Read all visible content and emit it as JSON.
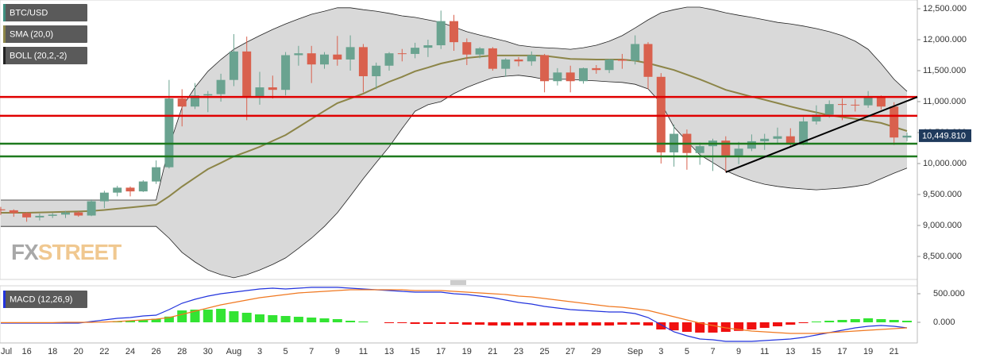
{
  "chart_data": [
    {
      "type": "candlestick",
      "name": "BTC/USD",
      "legend_color": "#3f8f7f",
      "up_color": "#6aa390",
      "down_color": "#d9614e",
      "open": [
        9260,
        9245,
        9200,
        9130,
        9155,
        9175,
        9210,
        9160,
        9390,
        9530,
        9610,
        9550,
        9710,
        9940,
        11050,
        10920,
        11100,
        11120,
        11350,
        11810,
        11070,
        11230,
        11190,
        11750,
        11780,
        11600,
        11760,
        11680,
        11880,
        11410,
        11580,
        11780,
        11770,
        11870,
        11910,
        12300,
        11960,
        11760,
        11860,
        11530,
        11680,
        11650,
        11750,
        11330,
        11470,
        11330,
        11540,
        11510,
        11680,
        11660,
        11930,
        11400,
        10180,
        10480,
        10170,
        10280,
        10370,
        10130,
        10240,
        10360,
        10400,
        10440,
        10330,
        10680,
        10790,
        10960,
        10950,
        10940,
        11090,
        10920,
        10420
      ],
      "high": [
        9300,
        9260,
        9215,
        9190,
        9200,
        9235,
        9230,
        9420,
        9560,
        9640,
        9630,
        9730,
        10050,
        11350,
        11200,
        11300,
        11170,
        11450,
        12090,
        12050,
        11480,
        11420,
        11800,
        11900,
        11900,
        11800,
        12060,
        12070,
        11930,
        11630,
        11800,
        11850,
        11950,
        12000,
        12470,
        12400,
        12020,
        11880,
        11880,
        11700,
        11720,
        11810,
        11770,
        11540,
        11580,
        11550,
        11590,
        11690,
        11770,
        12070,
        11960,
        11460,
        10630,
        10550,
        10340,
        10400,
        10440,
        10350,
        10470,
        10480,
        10580,
        10570,
        10750,
        10940,
        11020,
        11050,
        11040,
        11170,
        11100,
        10990,
        10500
      ],
      "low": [
        9170,
        9140,
        9060,
        9080,
        9120,
        9120,
        9140,
        9150,
        9280,
        9470,
        9470,
        9540,
        9670,
        9920,
        10600,
        10880,
        10830,
        11000,
        11250,
        10700,
        10950,
        11050,
        11100,
        11580,
        11300,
        11530,
        11580,
        11500,
        11150,
        11200,
        11500,
        11650,
        11700,
        11720,
        11850,
        11820,
        11590,
        11700,
        11500,
        11400,
        11570,
        11580,
        11150,
        11260,
        11150,
        11290,
        11450,
        11460,
        11530,
        11600,
        11200,
        10000,
        9950,
        9900,
        9980,
        9880,
        9860,
        9990,
        10200,
        10220,
        10310,
        10280,
        10300,
        10630,
        10740,
        10700,
        10840,
        10900,
        10870,
        10300,
        10360
      ],
      "close": [
        9245,
        9200,
        9130,
        9155,
        9175,
        9210,
        9160,
        9390,
        9530,
        9610,
        9550,
        9710,
        9940,
        11050,
        10920,
        11100,
        11120,
        11350,
        11810,
        11070,
        11230,
        11190,
        11750,
        11780,
        11600,
        11760,
        11680,
        11880,
        11410,
        11580,
        11780,
        11770,
        11870,
        11910,
        12300,
        11960,
        11760,
        11860,
        11530,
        11680,
        11650,
        11750,
        11330,
        11470,
        11330,
        11540,
        11510,
        11680,
        11660,
        11930,
        11400,
        10180,
        10480,
        10170,
        10280,
        10370,
        10130,
        10240,
        10360,
        10400,
        10440,
        10330,
        10680,
        10790,
        10960,
        10950,
        10940,
        11090,
        10920,
        10420,
        10450
      ],
      "sma": {
        "name": "SMA (20,0)",
        "color": "#8c8548",
        "values": [
          9205,
          9205,
          9205,
          9210,
          9215,
          9220,
          9225,
          9235,
          9250,
          9270,
          9290,
          9310,
          9333,
          9470,
          9628,
          9770,
          9910,
          10010,
          10115,
          10190,
          10270,
          10365,
          10460,
          10590,
          10720,
          10850,
          10975,
          11050,
          11130,
          11225,
          11320,
          11400,
          11490,
          11550,
          11615,
          11660,
          11705,
          11725,
          11745,
          11745,
          11745,
          11745,
          11740,
          11715,
          11690,
          11685,
          11680,
          11680,
          11680,
          11660,
          11620,
          11565,
          11510,
          11435,
          11360,
          11275,
          11190,
          11135,
          11080,
          11030,
          10975,
          10920,
          10870,
          10825,
          10780,
          10750,
          10720,
          10690,
          10655,
          10590,
          10525
        ]
      },
      "boll": {
        "name": "BOLL (20,2,-2)",
        "color": "#222222",
        "fill": "#d9d9d9",
        "upper": [
          9410,
          9410,
          9410,
          9410,
          9410,
          9410,
          9410,
          9410,
          9410,
          9410,
          9410,
          9410,
          9410,
          10270,
          10910,
          11230,
          11490,
          11680,
          11845,
          11960,
          12065,
          12165,
          12255,
          12335,
          12410,
          12460,
          12515,
          12515,
          12485,
          12460,
          12425,
          12385,
          12360,
          12320,
          12280,
          12205,
          12130,
          12075,
          12025,
          11975,
          11910,
          11885,
          11870,
          11860,
          11845,
          11870,
          11910,
          11975,
          12065,
          12190,
          12320,
          12435,
          12485,
          12525,
          12525,
          12485,
          12435,
          12395,
          12360,
          12320,
          12280,
          12255,
          12220,
          12180,
          12130,
          12065,
          11975,
          11845,
          11615,
          11360,
          11165
        ],
        "lower": [
          8985,
          8985,
          8985,
          8985,
          8985,
          8985,
          8985,
          8985,
          8985,
          8985,
          8985,
          8985,
          8985,
          8795,
          8565,
          8410,
          8280,
          8205,
          8155,
          8205,
          8280,
          8370,
          8475,
          8630,
          8795,
          8985,
          9205,
          9475,
          9755,
          10015,
          10270,
          10565,
          10845,
          10950,
          11000,
          11130,
          11230,
          11310,
          11385,
          11410,
          11425,
          11400,
          11360,
          11360,
          11360,
          11345,
          11335,
          11320,
          11310,
          11280,
          11205,
          10975,
          10590,
          10360,
          10140,
          10015,
          9885,
          9795,
          9720,
          9665,
          9630,
          9605,
          9590,
          9575,
          9590,
          9605,
          9630,
          9665,
          9755,
          9845,
          9925
        ]
      },
      "hlines": [
        {
          "value": 11075,
          "color": "#e00000"
        },
        {
          "value": 10770,
          "color": "#e00000"
        },
        {
          "value": 10320,
          "color": "#1e7a1e"
        },
        {
          "value": 10115,
          "color": "#1e7a1e"
        }
      ],
      "trendline": {
        "x": [
          56,
          70.8
        ],
        "values": [
          9860,
          11075
        ],
        "color": "#000000"
      },
      "last_price": {
        "value": 10449.81,
        "label": "10,449.810",
        "color": "#1f3a5c"
      },
      "ylim": [
        8128,
        12641
      ],
      "yticks": [
        {
          "value": 8500,
          "label": "8,500.000"
        },
        {
          "value": 9000,
          "label": "9,000.000"
        },
        {
          "value": 9500,
          "label": "9,500.000"
        },
        {
          "value": 10000,
          "label": "10,000.000"
        },
        {
          "value": 10500,
          "label": "10,500.000"
        },
        {
          "value": 11000,
          "label": "11,000.000"
        },
        {
          "value": 11500,
          "label": "11,500.000"
        },
        {
          "value": 12000,
          "label": "12,000.000"
        },
        {
          "value": 12500,
          "label": "12,500.000"
        }
      ],
      "watermark": [
        "FX",
        "STREET"
      ]
    },
    {
      "type": "macd",
      "name": "MACD (12,26,9)",
      "legend_color": "#2233dd",
      "categories": [
        "Jul",
        null,
        "16",
        null,
        "18",
        null,
        "20",
        null,
        "22",
        null,
        "24",
        null,
        "26",
        null,
        "28",
        null,
        "30",
        null,
        "Aug",
        null,
        "3",
        null,
        "5",
        null,
        "7",
        null,
        "9",
        null,
        "11",
        null,
        "13",
        null,
        "15",
        null,
        "17",
        null,
        "19",
        null,
        "21",
        null,
        "23",
        null,
        "25",
        null,
        "27",
        null,
        "29",
        null,
        null,
        "Sep",
        null,
        "3",
        null,
        "5",
        null,
        "7",
        null,
        "9",
        null,
        "11",
        null,
        "13",
        null,
        "15",
        null,
        "17",
        null,
        "19",
        null,
        "21",
        null
      ],
      "macd": {
        "color": "#2233dd",
        "values": [
          -14,
          -14,
          -14,
          -14,
          -14,
          -14,
          -14,
          14,
          42,
          69,
          83,
          111,
          125,
          222,
          333,
          403,
          458,
          500,
          528,
          556,
          583,
          597,
          583,
          597,
          611,
          611,
          611,
          597,
          583,
          569,
          556,
          542,
          528,
          528,
          528,
          500,
          486,
          458,
          431,
          389,
          347,
          319,
          278,
          250,
          222,
          208,
          194,
          181,
          181,
          153,
          83,
          -42,
          -167,
          -236,
          -292,
          -306,
          -333,
          -333,
          -333,
          -319,
          -306,
          -292,
          -264,
          -222,
          -181,
          -139,
          -97,
          -69,
          -56,
          -69,
          -97
        ]
      },
      "signal": {
        "color": "#f07820",
        "values": [
          -5,
          -5,
          -5,
          -5,
          -5,
          0,
          0,
          0,
          5,
          14,
          28,
          42,
          56,
          83,
          139,
          194,
          250,
          306,
          347,
          389,
          431,
          458,
          486,
          514,
          528,
          542,
          556,
          569,
          569,
          569,
          569,
          569,
          556,
          556,
          556,
          542,
          528,
          514,
          500,
          486,
          458,
          444,
          417,
          389,
          361,
          333,
          306,
          278,
          264,
          236,
          208,
          153,
          97,
          42,
          -14,
          -56,
          -97,
          -125,
          -153,
          -167,
          -181,
          -194,
          -194,
          -194,
          -181,
          -167,
          -153,
          -139,
          -125,
          -111,
          -97
        ]
      },
      "histogram": {
        "up_color": "#33e433",
        "down_color": "#f01010",
        "values": [
          0,
          0,
          0,
          0,
          0,
          0,
          0,
          2,
          10,
          20,
          30,
          40,
          60,
          100,
          208,
          222,
          222,
          236,
          194,
          167,
          139,
          125,
          111,
          97,
          83,
          69,
          56,
          28,
          14,
          0,
          -14,
          -14,
          -28,
          -28,
          -28,
          -28,
          -42,
          -42,
          -56,
          -56,
          -56,
          -56,
          -56,
          -56,
          -56,
          -56,
          -56,
          -56,
          -42,
          -42,
          -56,
          -125,
          -140,
          -167,
          -180,
          -180,
          -167,
          -150,
          -125,
          -97,
          -70,
          -42,
          -14,
          14,
          28,
          42,
          56,
          70,
          56,
          42,
          28
        ]
      },
      "ylim": [
        -361,
        639
      ],
      "yticks": [
        {
          "value": 0,
          "label": "0.000"
        },
        {
          "value": 500,
          "label": "500.000"
        }
      ]
    }
  ]
}
